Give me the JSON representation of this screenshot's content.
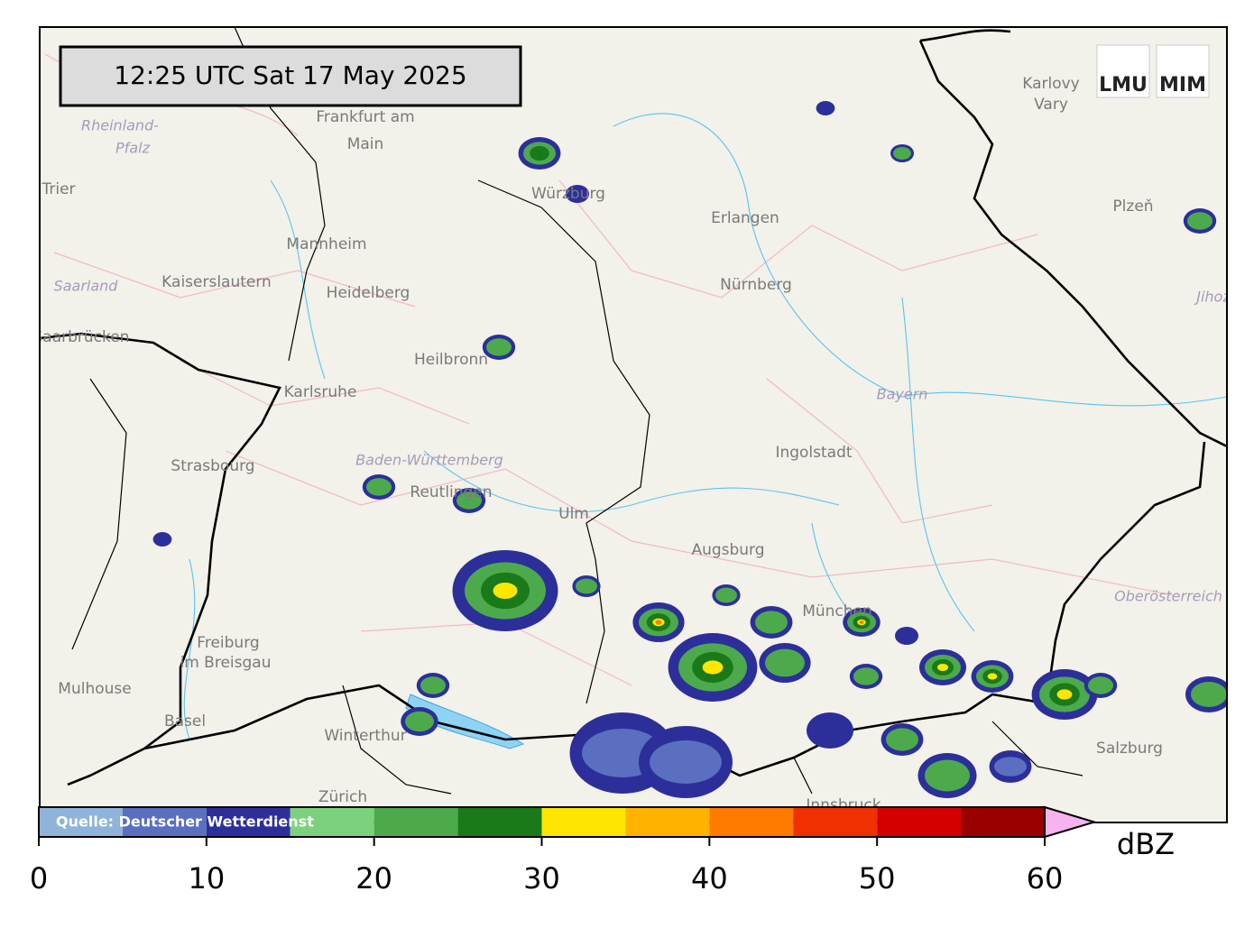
{
  "timestamp": "12:25 UTC  Sat 17 May 2025",
  "logos": [
    "LMU",
    "MIM"
  ],
  "places": [
    "Frankfurt am",
    "Main",
    "Würzburg",
    "Erlangen",
    "Nürnberg",
    "Mannheim",
    "Kaiserslautern",
    "Heidelberg",
    "Heilbronn",
    "Karlsruhe",
    "Saarbrücken",
    "Trier",
    "Strasbourg",
    "Reutlingen",
    "Ulm",
    "Augsburg",
    "Ingolstadt",
    "München",
    "Freiburg",
    "im Breisgau",
    "Mulhouse",
    "Basel",
    "Winterthur",
    "Zürich",
    "Karlovy",
    "Vary",
    "Plzeň",
    "Salzburg",
    "Innsbruck"
  ],
  "regions": [
    "Rheinland-",
    "Pfalz",
    "Saarland",
    "Baden-Württemberg",
    "Bayern",
    "Oberösterreich",
    "Jihoz"
  ],
  "colorbar": {
    "source": "Quelle: Deutscher Wetterdienst",
    "unit": "dBZ",
    "lim": [
      0,
      60
    ],
    "ticks": [
      0,
      10,
      20,
      30,
      40,
      50,
      60
    ],
    "bounds": [
      0,
      5,
      10,
      15,
      20,
      25,
      30,
      35,
      40,
      45,
      50,
      55,
      60
    ],
    "colors": [
      "#8fb3d9",
      "#5a6fc0",
      "#2c2f9a",
      "#7cd17c",
      "#4caa4c",
      "#1a7a1a",
      "#ffe600",
      "#ffb300",
      "#ff7b00",
      "#f03000",
      "#d40000",
      "#9a0000"
    ],
    "extend_color": "#f7b2f0"
  }
}
